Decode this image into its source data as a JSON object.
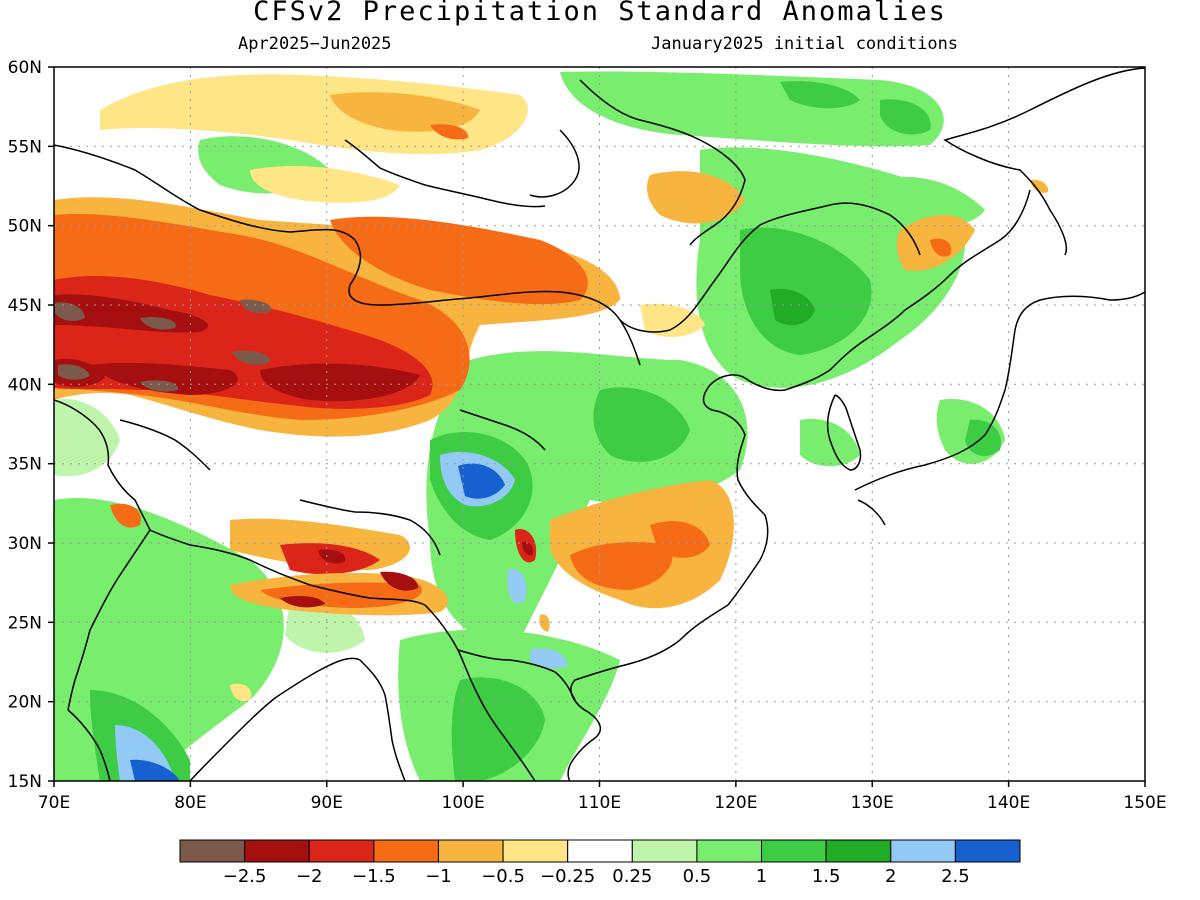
{
  "title": "CFSv2 Precipitation Standard Anomalies",
  "subtitle_left": "Apr2025−Jun2025",
  "subtitle_right": "January2025 initial conditions",
  "map": {
    "lon_range": [
      70,
      150
    ],
    "lat_range": [
      15,
      60
    ],
    "lat_labels": [
      "15N",
      "20N",
      "25N",
      "30N",
      "35N",
      "40N",
      "45N",
      "50N",
      "55N",
      "60N"
    ],
    "lon_labels": [
      "70E",
      "80E",
      "90E",
      "100E",
      "110E",
      "120E",
      "130E",
      "140E",
      "150E"
    ]
  },
  "colorbar": {
    "colors": [
      "#7b5a4c",
      "#a50f0f",
      "#dc2519",
      "#f56b16",
      "#f7b43e",
      "#fee586",
      "#ffffff",
      "#bff5aa",
      "#78ed6e",
      "#3ecc45",
      "#22ab24",
      "#92caf5",
      "#1661cf"
    ],
    "labels": [
      "−2.5",
      "−2",
      "−1.5",
      "−1",
      "−0.5",
      "−0.25",
      "0.25",
      "0.5",
      "1",
      "1.5",
      "2",
      "2.5"
    ]
  }
}
